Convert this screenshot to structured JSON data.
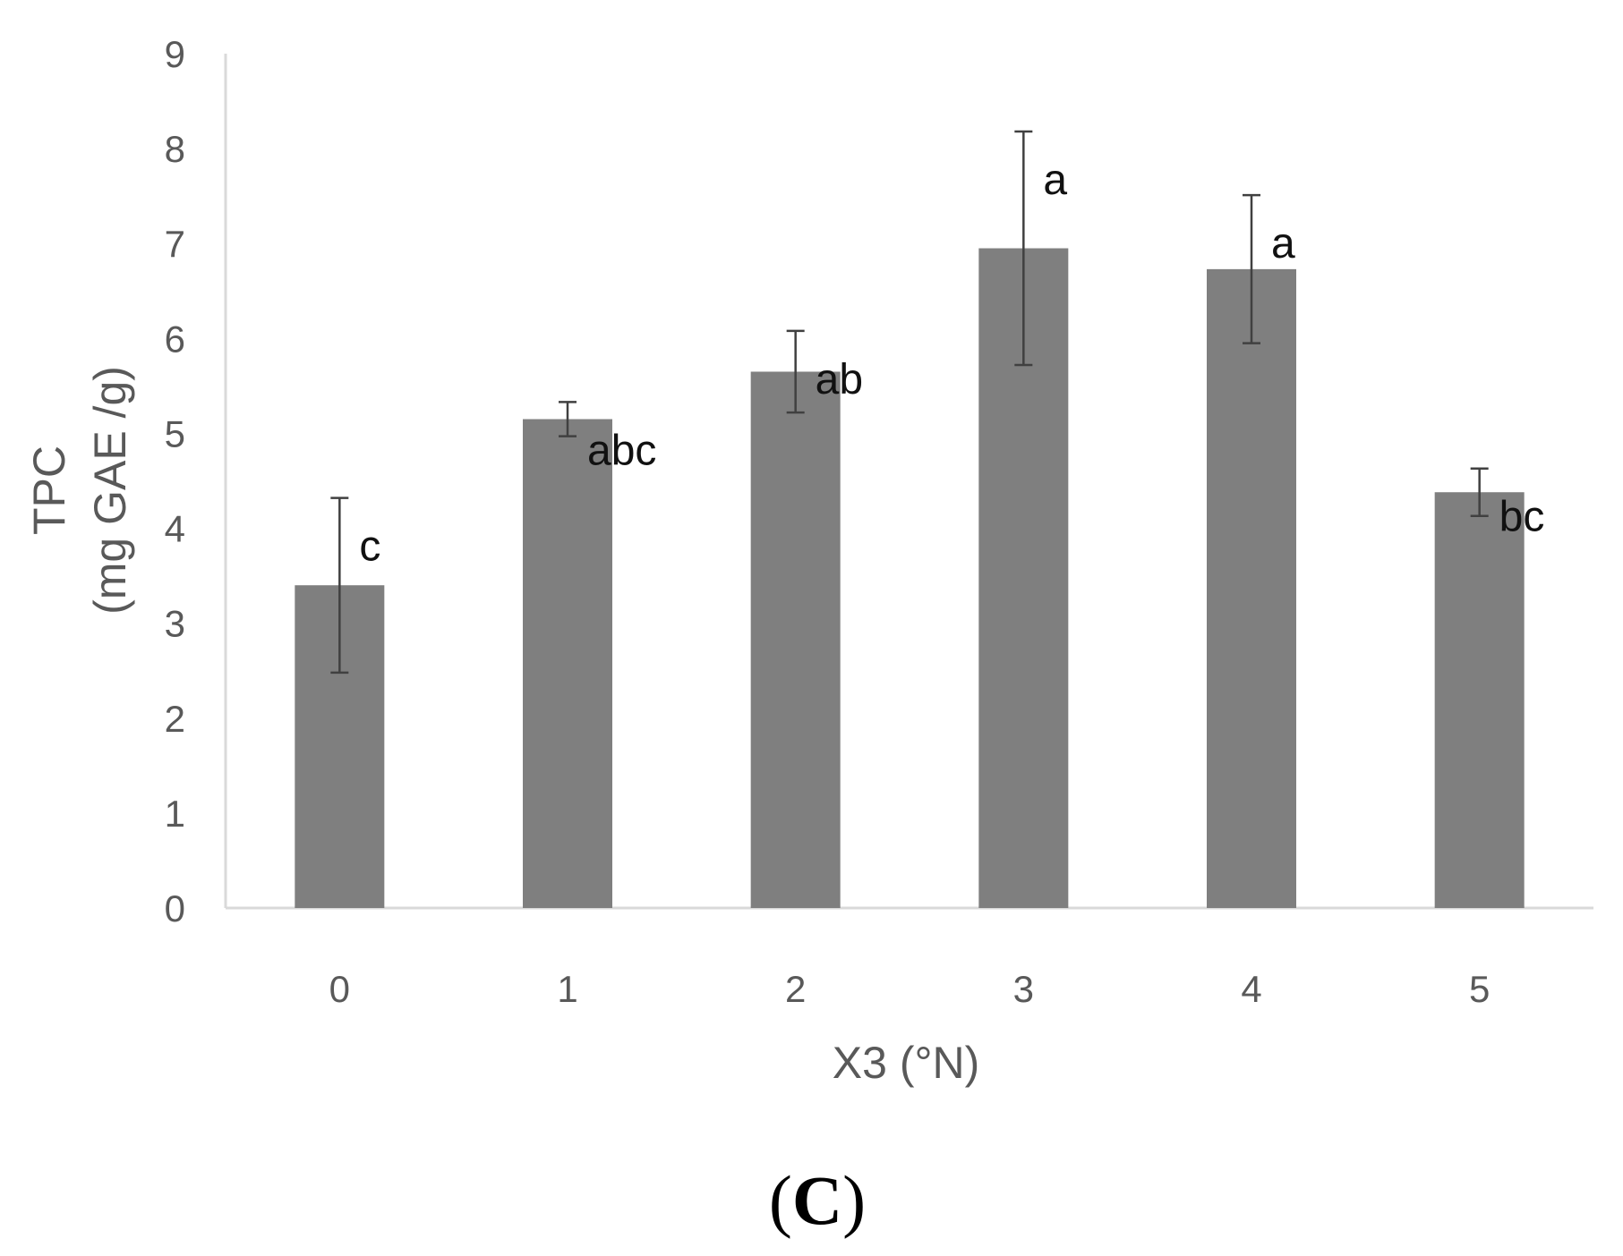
{
  "chart_data": {
    "type": "bar",
    "categories": [
      "0",
      "1",
      "2",
      "3",
      "4",
      "5"
    ],
    "values": [
      3.4,
      5.15,
      5.65,
      6.95,
      6.73,
      4.38
    ],
    "error_bars": [
      0.92,
      0.18,
      0.43,
      1.23,
      0.78,
      0.25
    ],
    "significance_labels": [
      "c",
      "abc",
      "ab",
      "a",
      "a",
      "bc"
    ],
    "xlabel": "X3 (°N)",
    "ylabel_line1": "TPC",
    "ylabel_line2": "(mg GAE /g)",
    "ylim": [
      0,
      9
    ],
    "yticks": [
      "0",
      "1",
      "2",
      "3",
      "4",
      "5",
      "6",
      "7",
      "8",
      "9"
    ],
    "grid": false,
    "bar_color": "#7f7f7f",
    "axis_color": "#d9d9d9",
    "errorbar_color": "#404040"
  },
  "panel_label": {
    "open": "(",
    "letter": "C",
    "close": ")"
  }
}
